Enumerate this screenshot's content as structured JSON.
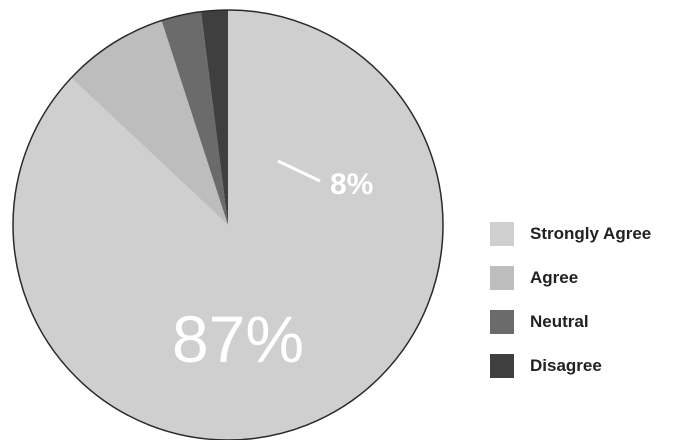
{
  "chart_data": {
    "type": "pie",
    "title": "",
    "start_angle_deg": 0,
    "direction": "clockwise",
    "slices": [
      {
        "label": "Strongly Agree",
        "value": 87,
        "color": "#cfcfcf",
        "data_label": "87%"
      },
      {
        "label": "Agree",
        "value": 8,
        "color": "#bdbdbd",
        "data_label": "8%"
      },
      {
        "label": "Neutral",
        "value": 3,
        "color": "#6b6b6b",
        "data_label": ""
      },
      {
        "label": "Disagree",
        "value": 2,
        "color": "#3f3f3f",
        "data_label": ""
      }
    ],
    "legend_position": "right",
    "outline_color": "#2a2a2a"
  }
}
